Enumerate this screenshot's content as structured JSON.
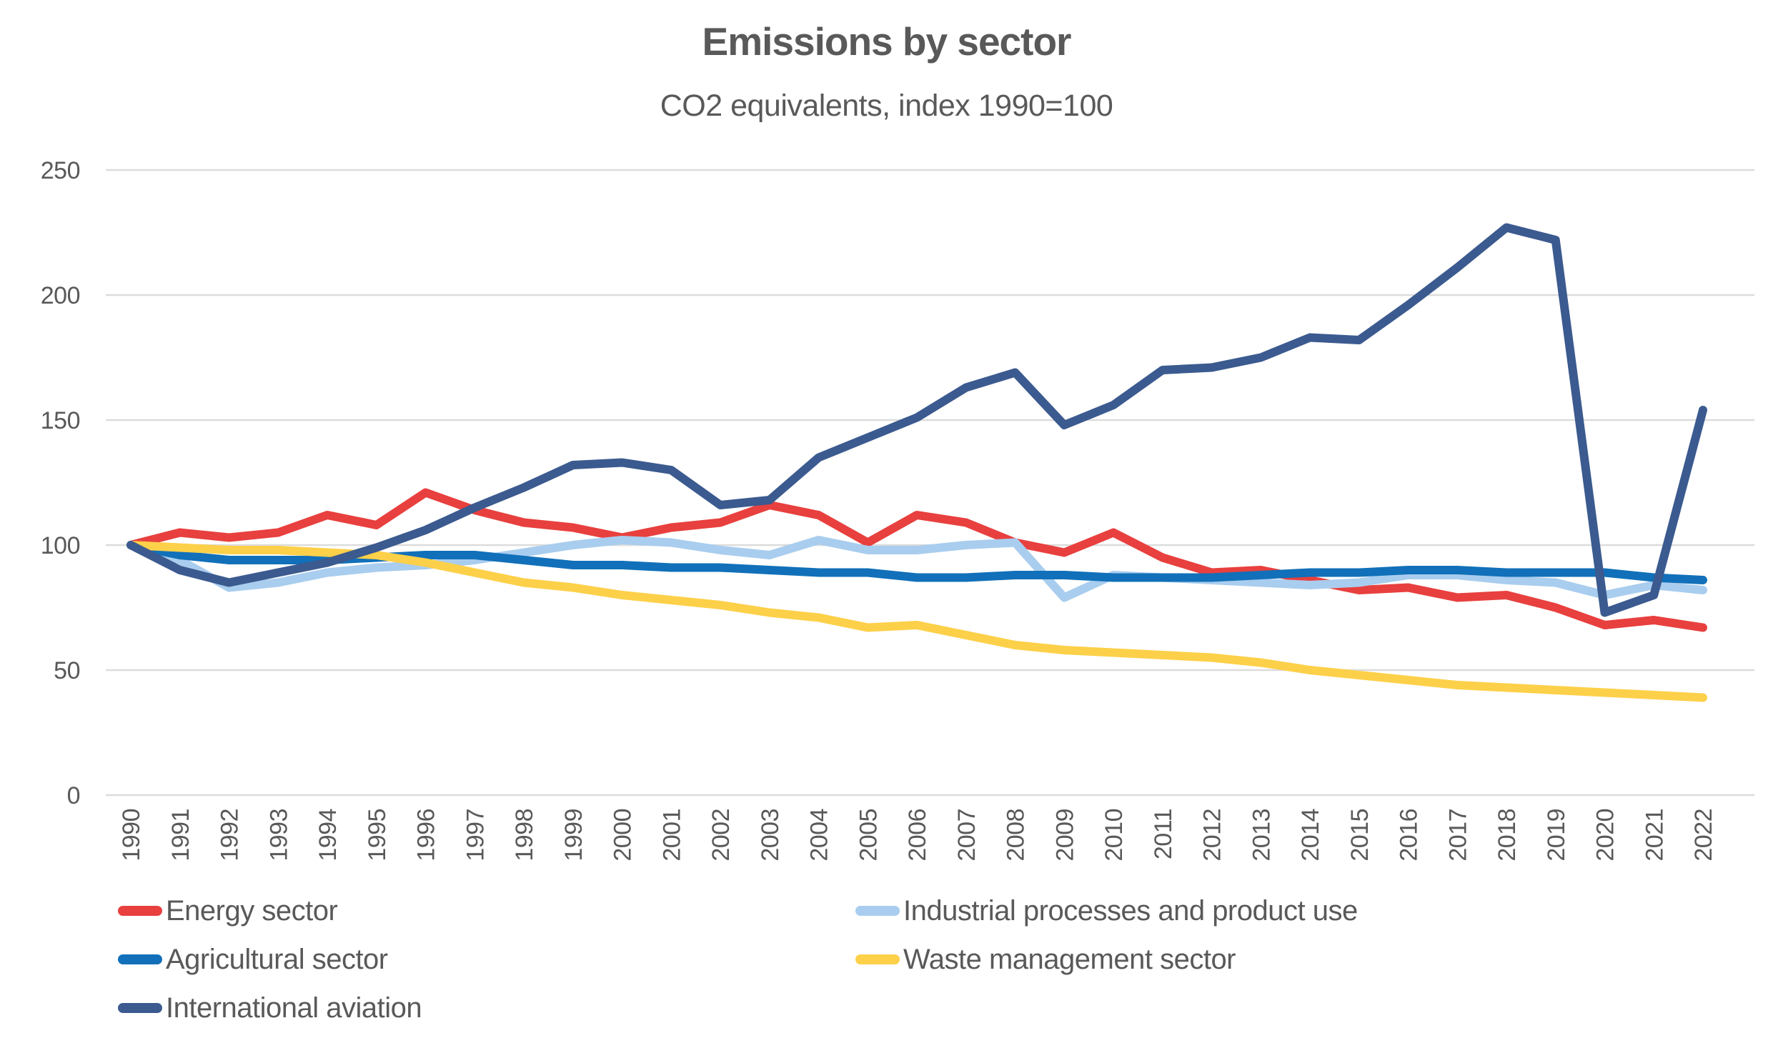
{
  "title": "Emissions by sector",
  "subtitle": "CO2 equivalents, index 1990=100",
  "colors": {
    "text": "#595959",
    "gridline": "#dcdcdc",
    "background": "#ffffff",
    "energy": "#e8403e",
    "industrial": "#a9cdee",
    "agricultural": "#1170b9",
    "waste": "#fdd049",
    "aviation": "#3b5a8f"
  },
  "chart_data": {
    "type": "line",
    "title": "Emissions by sector",
    "subtitle": "CO2 equivalents, index 1990=100",
    "xlabel": "",
    "ylabel": "",
    "ylim": [
      0,
      250
    ],
    "yticks": [
      0,
      50,
      100,
      150,
      200,
      250
    ],
    "grid": true,
    "legend_position": "bottom",
    "x": [
      1990,
      1991,
      1992,
      1993,
      1994,
      1995,
      1996,
      1997,
      1998,
      1999,
      2000,
      2001,
      2002,
      2003,
      2004,
      2005,
      2006,
      2007,
      2008,
      2009,
      2010,
      2011,
      2012,
      2013,
      2014,
      2015,
      2016,
      2017,
      2018,
      2019,
      2020,
      2021,
      2022
    ],
    "series": [
      {
        "name": "Energy sector",
        "color": "#e8403e",
        "values": [
          100,
          105,
          103,
          105,
          112,
          108,
          121,
          114,
          109,
          107,
          103,
          107,
          109,
          116,
          112,
          101,
          112,
          109,
          101,
          97,
          105,
          95,
          89,
          90,
          86,
          82,
          83,
          79,
          80,
          75,
          68,
          70,
          67
        ]
      },
      {
        "name": "Industrial processes and product use",
        "color": "#a9cdee",
        "values": [
          100,
          94,
          83,
          85,
          89,
          91,
          92,
          94,
          97,
          100,
          102,
          101,
          98,
          96,
          102,
          98,
          98,
          100,
          101,
          79,
          88,
          87,
          86,
          85,
          84,
          85,
          88,
          88,
          86,
          85,
          80,
          84,
          82
        ]
      },
      {
        "name": "Agricultural sector",
        "color": "#1170b9",
        "values": [
          100,
          96,
          94,
          94,
          94,
          95,
          96,
          96,
          94,
          92,
          92,
          91,
          91,
          90,
          89,
          89,
          87,
          87,
          88,
          88,
          87,
          87,
          87,
          88,
          89,
          89,
          90,
          90,
          89,
          89,
          89,
          87,
          86
        ]
      },
      {
        "name": "Waste management sector",
        "color": "#fdd049",
        "values": [
          100,
          99,
          98,
          98,
          97,
          96,
          93,
          89,
          85,
          83,
          80,
          78,
          76,
          73,
          71,
          67,
          68,
          64,
          60,
          58,
          57,
          56,
          55,
          53,
          50,
          48,
          46,
          44,
          43,
          42,
          41,
          40,
          39
        ]
      },
      {
        "name": "International aviation",
        "color": "#3b5a8f",
        "values": [
          100,
          90,
          85,
          89,
          93,
          99,
          106,
          115,
          123,
          132,
          133,
          130,
          116,
          118,
          135,
          143,
          151,
          163,
          169,
          148,
          156,
          170,
          171,
          175,
          183,
          182,
          196,
          211,
          227,
          222,
          73,
          80,
          154
        ]
      }
    ]
  }
}
